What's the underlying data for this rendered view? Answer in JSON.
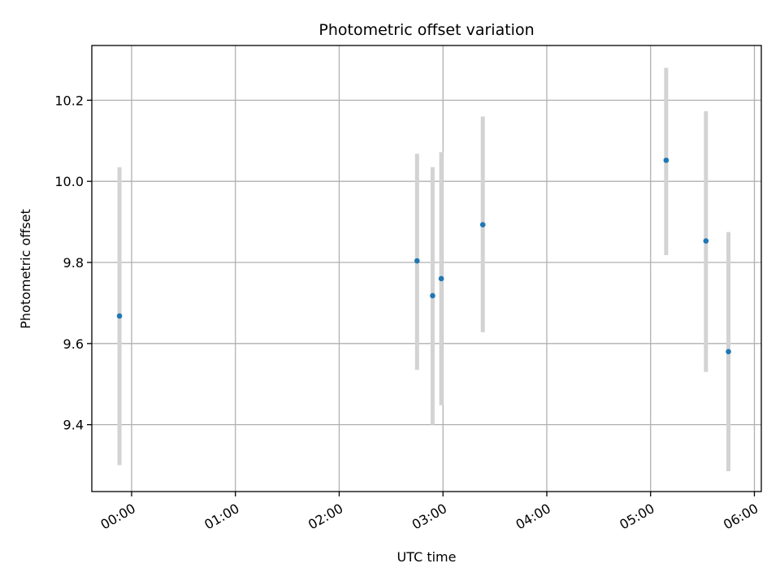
{
  "chart_data": {
    "type": "scatter",
    "title": "Photometric offset variation",
    "xlabel": "UTC time",
    "ylabel": "Photometric offset",
    "xlim": [
      "23:37",
      "06:04"
    ],
    "ylim": [
      9.235,
      10.335
    ],
    "x_ticks": [
      "00:00",
      "01:00",
      "02:00",
      "03:00",
      "04:00",
      "05:00",
      "06:00"
    ],
    "y_ticks": [
      "9.4",
      "9.6",
      "9.8",
      "10.0",
      "10.2"
    ],
    "grid": true,
    "legend": "none",
    "colors": {
      "point": "#1f77b4",
      "errorbar": "#d3d3d3",
      "grid": "#b0b0b0"
    },
    "series": [
      {
        "x": [
          "23:53",
          "02:45",
          "02:54",
          "02:59",
          "03:23",
          "05:09",
          "05:32",
          "05:45"
        ],
        "y": [
          9.668,
          9.804,
          9.718,
          9.76,
          9.893,
          10.052,
          9.853,
          9.58
        ],
        "y_low": [
          9.3,
          9.535,
          9.4,
          9.448,
          9.628,
          9.818,
          9.53,
          9.285
        ],
        "y_high": [
          10.035,
          10.068,
          10.035,
          10.072,
          10.16,
          10.28,
          10.173,
          9.875
        ]
      }
    ]
  }
}
